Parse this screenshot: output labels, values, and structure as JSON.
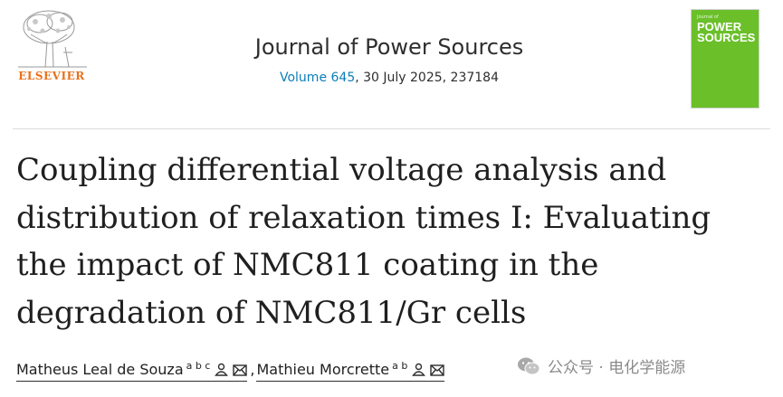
{
  "header": {
    "publisher": "ELSEVIER",
    "journal_title": "Journal of Power Sources",
    "volume_link": "Volume 645",
    "citation_rest": ", 30 July 2025, 237184",
    "cover": {
      "subtitle": "Journal of",
      "title": "POWER SOURCES",
      "color": "#6bc02a"
    }
  },
  "article": {
    "title_lines": [
      "Coupling differential voltage analysis and",
      "distribution of relaxation times I: Evaluating",
      "the impact of NMC811 coating in the",
      "degradation of NMC811/Gr cells"
    ]
  },
  "authors": [
    {
      "name": "Matheus Leal de Souza",
      "affiliations": "a b c"
    },
    {
      "name": "Mathieu Morcrette",
      "affiliations": "a b"
    }
  ],
  "author_separator": ",",
  "watermark": {
    "text": "公众号 · 电化学能源",
    "icon": "wechat-icon"
  },
  "colors": {
    "publisher": "#e9711c",
    "link": "#0c7dbb"
  }
}
